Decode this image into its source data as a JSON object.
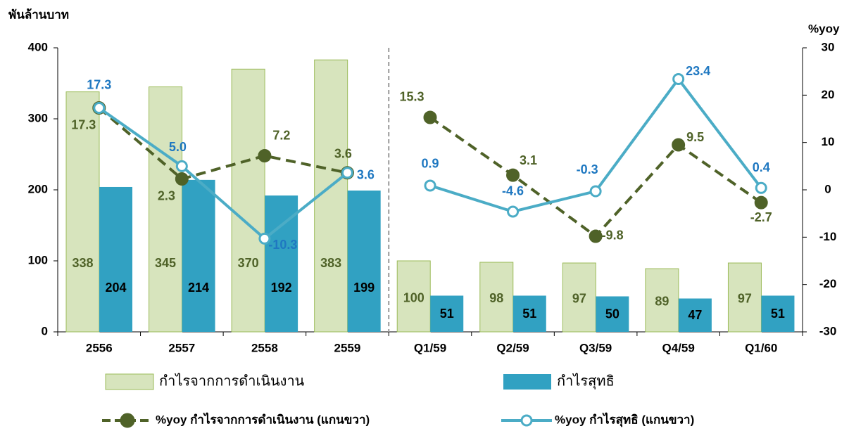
{
  "chart_data": {
    "type": "bar",
    "y_label": "พันล้านบาท",
    "y2_label": "%yoy",
    "categories": [
      "2556",
      "2557",
      "2558",
      "2559",
      "Q1/59",
      "Q2/59",
      "Q3/59",
      "Q4/59",
      "Q1/60"
    ],
    "divider_after": 3,
    "ylim": [
      0,
      400
    ],
    "yticks": [
      0,
      100,
      200,
      300,
      400
    ],
    "y2lim": [
      -30,
      30
    ],
    "y2ticks": [
      -30,
      -20,
      -10,
      0,
      10,
      20,
      30
    ],
    "series": [
      {
        "name": "กำไรจากการดำเนินงาน",
        "type": "bar",
        "color": "#d7e4bd",
        "values": [
          338,
          345,
          370,
          383,
          100,
          98,
          97,
          89,
          97
        ]
      },
      {
        "name": "กำไรสุทธิ",
        "type": "bar",
        "color": "#31a1c2",
        "values": [
          204,
          214,
          192,
          199,
          51,
          51,
          50,
          47,
          51
        ]
      },
      {
        "name": "%yoy กำไรจากการดำเนินงาน (แกนขวา)",
        "type": "line",
        "axis": "y2",
        "color": "#4f6228",
        "values": [
          17.3,
          2.3,
          7.2,
          3.6,
          15.3,
          3.1,
          -9.8,
          9.5,
          -2.7
        ]
      },
      {
        "name": "%yoy กำไรสุทธิ (แกนขวา)",
        "type": "line",
        "axis": "y2",
        "color": "#4bacc6",
        "values": [
          17.3,
          5.0,
          -10.3,
          3.6,
          0.9,
          -4.6,
          -0.3,
          23.4,
          0.4
        ],
        "value_labels": [
          "17.3",
          "5.0",
          "-10.3",
          "3.6",
          "0.9",
          "-4.6",
          "-0.3",
          "23.4",
          "0.4"
        ]
      }
    ]
  }
}
